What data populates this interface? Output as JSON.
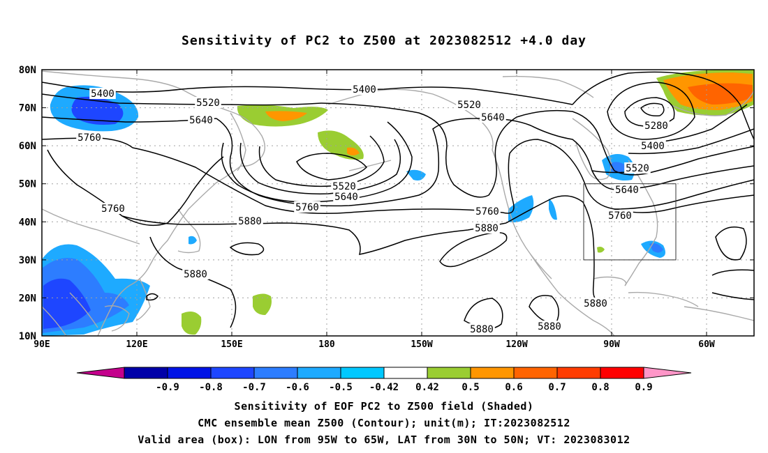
{
  "title": "Sensitivity of PC2 to Z500 at 2023082512 +4.0 day",
  "lat_labels": [
    "80N",
    "70N",
    "60N",
    "50N",
    "40N",
    "30N",
    "20N",
    "10N"
  ],
  "lon_labels": [
    "90E",
    "120E",
    "150E",
    "180",
    "150W",
    "120W",
    "90W",
    "60W"
  ],
  "contour_labels": [
    {
      "text": "5400"
    },
    {
      "text": "5520"
    },
    {
      "text": "5640"
    },
    {
      "text": "5760"
    },
    {
      "text": "5400"
    },
    {
      "text": "5520"
    },
    {
      "text": "5640"
    },
    {
      "text": "5280"
    },
    {
      "text": "5400"
    },
    {
      "text": "5520"
    },
    {
      "text": "5640"
    },
    {
      "text": "5760"
    },
    {
      "text": "5520"
    },
    {
      "text": "5640"
    },
    {
      "text": "5760"
    },
    {
      "text": "5760"
    },
    {
      "text": "5880"
    },
    {
      "text": "5760"
    },
    {
      "text": "5880"
    },
    {
      "text": "5880"
    },
    {
      "text": "5880"
    },
    {
      "text": "5880"
    },
    {
      "text": "5880"
    }
  ],
  "colorbar": {
    "labels": [
      "-0.9",
      "-0.8",
      "-0.7",
      "-0.6",
      "-0.5",
      "-0.42",
      "0.42",
      "0.5",
      "0.6",
      "0.7",
      "0.8",
      "0.9"
    ],
    "colors": [
      "#c4008c",
      "#0000a8",
      "#0014e6",
      "#1e46ff",
      "#2d7dff",
      "#1eaaff",
      "#00c8ff",
      "#ffffff",
      "#9acd32",
      "#ff9600",
      "#ff6400",
      "#ff3c00",
      "#ff0000",
      "#ff96c8"
    ]
  },
  "captions": [
    "Sensitivity of EOF PC2 to Z500 field (Shaded)",
    "CMC ensemble mean Z500 (Contour); unit(m); IT:2023082512",
    "Valid area (box): LON from 95W to 65W, LAT from 30N to 50N; VT: 2023083012"
  ]
}
